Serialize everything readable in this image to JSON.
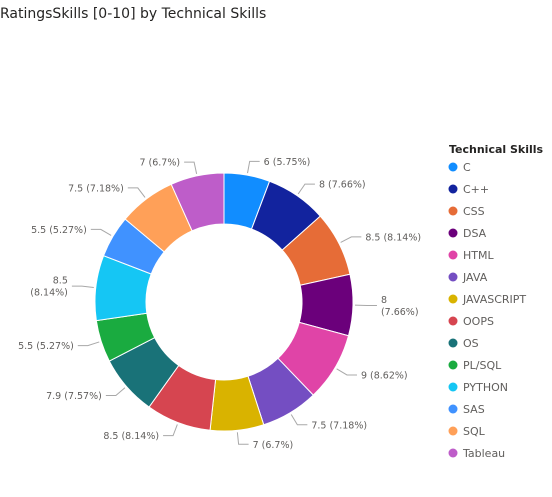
{
  "chart_data": {
    "type": "pie",
    "donut": true,
    "title": "RatingsSkills [0-10] by Technical Skills",
    "legend_title": "Technical Skills",
    "legend_position": "right",
    "categories": [
      "C",
      "C++",
      "CSS",
      "DSA",
      "HTML",
      "JAVA",
      "JAVASCRIPT",
      "OOPS",
      "OS",
      "PL/SQL",
      "PYTHON",
      "SAS",
      "SQL",
      "Tableau"
    ],
    "values": [
      6,
      8,
      8.5,
      8,
      9,
      7.5,
      7,
      8.5,
      7.9,
      5.5,
      8.5,
      5.5,
      7.5,
      7
    ],
    "percents": [
      "5.75%",
      "7.66%",
      "8.14%",
      "7.66%",
      "8.62%",
      "7.18%",
      "6.7%",
      "8.14%",
      "7.57%",
      "5.27%",
      "8.14%",
      "5.27%",
      "7.18%",
      "6.7%"
    ],
    "labels": [
      [
        "6 (5.75%)"
      ],
      [
        "8 (7.66%)"
      ],
      [
        "8.5 (8.14%)"
      ],
      [
        "8",
        "(7.66%)"
      ],
      [
        "9 (8.62%)"
      ],
      [
        "7.5 (7.18%)"
      ],
      [
        "7 (6.7%)"
      ],
      [
        "8.5 (8.14%)"
      ],
      [
        "7.9 (7.57%)"
      ],
      [
        "5.5 (5.27%)"
      ],
      [
        "8.5",
        "(8.14%)"
      ],
      [
        "5.5 (5.27%)"
      ],
      [
        "7.5 (7.18%)"
      ],
      [
        "7 (6.7%)"
      ]
    ],
    "colors": [
      "#118DFF",
      "#12239E",
      "#E66C37",
      "#6B007B",
      "#E044A7",
      "#744EC2",
      "#D9B300",
      "#D64550",
      "#197278",
      "#1AAB40",
      "#15C6F4",
      "#4092FF",
      "#FFA058",
      "#BE5DC9"
    ]
  }
}
